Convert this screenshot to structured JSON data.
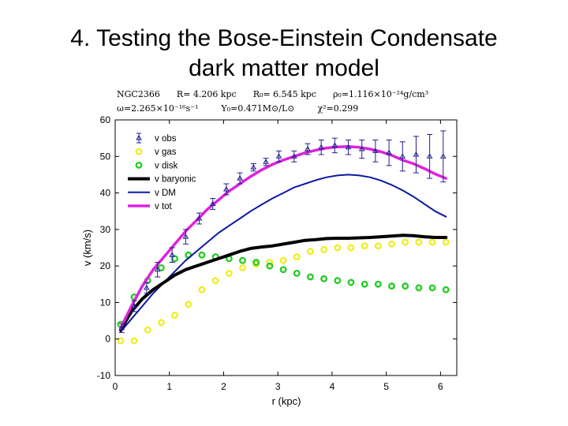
{
  "slide": {
    "title_line1": "4. Testing the Bose-Einstein Condensate",
    "title_line2": "dark matter model"
  },
  "chart_data": {
    "type": "scatter",
    "params": {
      "row1": [
        "NGC2366",
        "R= 4.206 kpc",
        "R₀= 6.545 kpc",
        "ρ₀=1.116×10⁻²⁴g/cm³"
      ],
      "row2": [
        "ω=2.265×10⁻¹⁶s⁻¹",
        "Υ₀=0.471M⊙/L⊙",
        "χ²=0.299"
      ]
    },
    "xlabel": "r (kpc)",
    "ylabel": "v (km/s)",
    "xlim": [
      0,
      6.3
    ],
    "ylim": [
      -10,
      60
    ],
    "xticks": [
      0,
      1,
      2,
      3,
      4,
      5,
      6
    ],
    "yticks": [
      -10,
      0,
      10,
      20,
      30,
      40,
      50,
      60
    ],
    "grid": false,
    "legend_position": "top-left",
    "legend": [
      {
        "label": "v obs",
        "kind": "errorbar",
        "color": "#1f1f8f"
      },
      {
        "label": "v gas",
        "kind": "circle",
        "color": "#eeee22"
      },
      {
        "label": "v disk",
        "kind": "circle",
        "color": "#22cc22"
      },
      {
        "label": "v baryonic",
        "kind": "line",
        "color": "#000000",
        "width": 4
      },
      {
        "label": "v DM",
        "kind": "line",
        "color": "#0b1aa0",
        "width": 2
      },
      {
        "label": "v tot",
        "kind": "line",
        "color": "#dd22dd",
        "width": 3.5
      }
    ],
    "series": [
      {
        "name": "v obs",
        "kind": "errorbar",
        "color": "#1f1f8f",
        "x": [
          0.12,
          0.35,
          0.58,
          0.78,
          1.05,
          1.3,
          1.55,
          1.8,
          2.05,
          2.3,
          2.55,
          2.78,
          3.02,
          3.3,
          3.55,
          3.8,
          4.05,
          4.3,
          4.55,
          4.8,
          5.05,
          5.3,
          5.55,
          5.8,
          6.05
        ],
        "y": [
          3,
          9,
          14,
          19,
          23,
          28,
          33,
          37,
          41,
          44,
          47,
          48.5,
          50,
          50,
          52,
          52.5,
          53,
          52.5,
          52,
          51.5,
          51,
          50,
          50.5,
          50,
          50
        ],
        "err": [
          1.2,
          1.5,
          1.5,
          2,
          2,
          2,
          1.5,
          1.5,
          1.5,
          1.5,
          1,
          1,
          1.5,
          1.5,
          1.5,
          2,
          2,
          2,
          2.5,
          3,
          3.5,
          4,
          5,
          6,
          7
        ]
      },
      {
        "name": "v gas",
        "kind": "circle",
        "color": "#eeee22",
        "x": [
          0.1,
          0.35,
          0.6,
          0.85,
          1.1,
          1.35,
          1.6,
          1.85,
          2.1,
          2.35,
          2.6,
          2.85,
          3.1,
          3.35,
          3.6,
          3.85,
          4.1,
          4.35,
          4.6,
          4.85,
          5.1,
          5.35,
          5.6,
          5.85,
          6.1
        ],
        "y": [
          -0.5,
          -0.5,
          2.5,
          4.5,
          6.5,
          9.5,
          13.5,
          16,
          18,
          19.5,
          20.5,
          21,
          21.5,
          22.5,
          24,
          24.5,
          25,
          25,
          25.5,
          25.5,
          26,
          26.5,
          26.5,
          26.5,
          26.5
        ]
      },
      {
        "name": "v disk",
        "kind": "circle",
        "color": "#22cc22",
        "x": [
          0.1,
          0.35,
          0.6,
          0.85,
          1.1,
          1.35,
          1.6,
          1.85,
          2.1,
          2.35,
          2.6,
          2.85,
          3.1,
          3.35,
          3.6,
          3.85,
          4.1,
          4.35,
          4.6,
          4.85,
          5.1,
          5.35,
          5.6,
          5.85,
          6.1
        ],
        "y": [
          4,
          11.5,
          16,
          19.5,
          22,
          23,
          23,
          22.5,
          22,
          21.5,
          21,
          20,
          19,
          18,
          17,
          16.5,
          16,
          15.5,
          15,
          15,
          14.5,
          14.5,
          14,
          14,
          13.5
        ]
      },
      {
        "name": "v baryonic",
        "kind": "line",
        "color": "#000000",
        "width": 4,
        "x": [
          0.1,
          0.3,
          0.5,
          0.7,
          0.9,
          1.1,
          1.3,
          1.5,
          1.7,
          1.9,
          2.1,
          2.3,
          2.5,
          2.7,
          2.9,
          3.1,
          3.3,
          3.5,
          3.7,
          3.9,
          4.1,
          4.3,
          4.5,
          4.7,
          4.9,
          5.1,
          5.3,
          5.5,
          5.7,
          5.9,
          6.1
        ],
        "y": [
          2.5,
          7.5,
          11,
          13.5,
          15.5,
          17.5,
          19,
          20,
          21,
          22,
          23,
          24,
          24.8,
          25.2,
          25.5,
          26,
          26.5,
          27,
          27.2,
          27.5,
          27.6,
          27.6,
          27.7,
          27.8,
          28,
          28.2,
          28.4,
          28.3,
          28,
          27.8,
          27.8
        ]
      },
      {
        "name": "v DM",
        "kind": "line",
        "color": "#0b1aa0",
        "width": 2,
        "x": [
          0.1,
          0.3,
          0.5,
          0.7,
          0.9,
          1.1,
          1.3,
          1.5,
          1.7,
          1.9,
          2.1,
          2.3,
          2.5,
          2.7,
          2.9,
          3.1,
          3.3,
          3.5,
          3.7,
          3.9,
          4.1,
          4.3,
          4.5,
          4.7,
          4.9,
          5.1,
          5.3,
          5.5,
          5.7,
          5.9,
          6.1
        ],
        "y": [
          2,
          5.5,
          9,
          12.5,
          15.5,
          18.5,
          21.5,
          24,
          26.5,
          29,
          31,
          33,
          35,
          36.8,
          38.5,
          40,
          41.5,
          42.5,
          43.5,
          44.3,
          44.8,
          45,
          44.8,
          44.3,
          43.4,
          42.2,
          40.7,
          39,
          37,
          35,
          33.5
        ]
      },
      {
        "name": "v tot",
        "kind": "line",
        "color": "#dd22dd",
        "width": 3.5,
        "x": [
          0.1,
          0.3,
          0.5,
          0.7,
          0.9,
          1.1,
          1.3,
          1.5,
          1.7,
          1.9,
          2.1,
          2.3,
          2.5,
          2.7,
          2.9,
          3.1,
          3.3,
          3.5,
          3.7,
          3.9,
          4.1,
          4.3,
          4.5,
          4.7,
          4.9,
          5.1,
          5.3,
          5.5,
          5.7,
          5.9,
          6.1
        ],
        "y": [
          3,
          9,
          14.5,
          19,
          22.5,
          26,
          29.5,
          32.5,
          35.5,
          38,
          40.5,
          42.5,
          44.5,
          46.3,
          47.8,
          49,
          50,
          51,
          51.7,
          52.3,
          52.6,
          52.7,
          52.5,
          52,
          51.3,
          50.3,
          49,
          48,
          46.7,
          45.2,
          44
        ]
      }
    ]
  }
}
